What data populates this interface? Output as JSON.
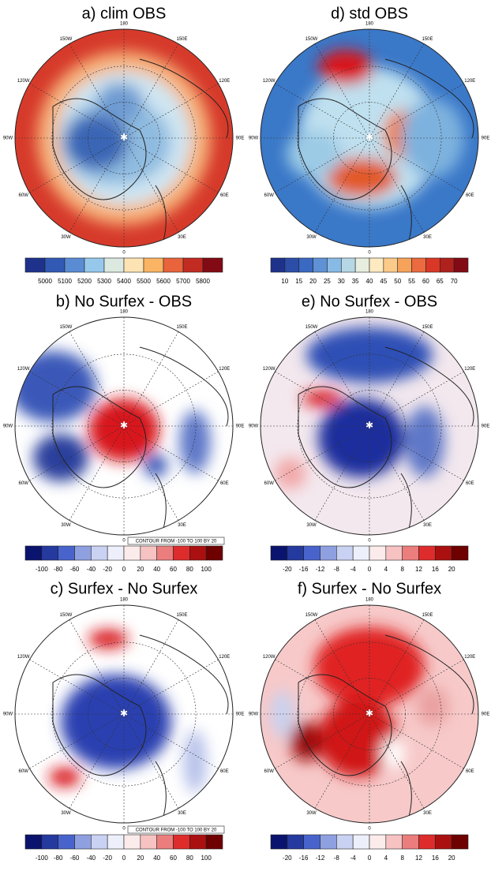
{
  "panels": [
    {
      "title": "a) clim OBS",
      "lon_labels": [
        "180",
        "150E",
        "120E",
        "90E",
        "60E",
        "30E",
        "0",
        "30W",
        "60W",
        "90W",
        "120W",
        "150W"
      ],
      "colorbar_labels": [
        "5000",
        "5100",
        "5200",
        "5300",
        "5400",
        "5500",
        "5600",
        "5700",
        "5800"
      ]
    },
    {
      "title": "b) No Surfex - OBS",
      "lon_labels": [
        "180",
        "150E",
        "120E",
        "90E",
        "60E",
        "30E",
        "0",
        "30W",
        "60W",
        "90W",
        "120W",
        "150W"
      ],
      "colorbar_labels": [
        "-100",
        "-80",
        "-60",
        "-40",
        "-20",
        "0",
        "20",
        "40",
        "60",
        "80",
        "100"
      ],
      "contour_note": "CONTOUR FROM -100 TO 100 BY 20"
    },
    {
      "title": "c) Surfex - No Surfex",
      "lon_labels": [
        "180",
        "150E",
        "120E",
        "90E",
        "60E",
        "30E",
        "0",
        "30W",
        "60W",
        "90W",
        "120W",
        "150W"
      ],
      "colorbar_labels": [
        "-100",
        "-80",
        "-60",
        "-40",
        "-20",
        "0",
        "20",
        "40",
        "60",
        "80",
        "100"
      ],
      "contour_note": "CONTOUR FROM -100 TO 100 BY 20"
    },
    {
      "title": "d) std OBS",
      "lon_labels": [
        "180",
        "150E",
        "120E",
        "90E",
        "60E",
        "30E",
        "0",
        "30W",
        "60W",
        "90W",
        "120W",
        "150W"
      ],
      "colorbar_labels": [
        "10",
        "15",
        "20",
        "25",
        "30",
        "35",
        "40",
        "45",
        "50",
        "55",
        "60",
        "65",
        "70"
      ]
    },
    {
      "title": "e) No Surfex - OBS",
      "lon_labels": [
        "180",
        "150E",
        "120E",
        "90E",
        "60E",
        "30E",
        "0",
        "30W",
        "60W",
        "90W",
        "120W",
        "150W"
      ],
      "colorbar_labels": [
        "-20",
        "-16",
        "-12",
        "-8",
        "-4",
        "0",
        "4",
        "8",
        "12",
        "16",
        "20"
      ]
    },
    {
      "title": "f) Surfex - No Surfex",
      "lon_labels": [
        "180",
        "150E",
        "120E",
        "90E",
        "60E",
        "30E",
        "0",
        "30W",
        "60W",
        "90W",
        "120W",
        "150W"
      ],
      "colorbar_labels": [
        "-20",
        "-16",
        "-12",
        "-8",
        "-4",
        "0",
        "4",
        "8",
        "12",
        "16",
        "20"
      ]
    }
  ]
}
